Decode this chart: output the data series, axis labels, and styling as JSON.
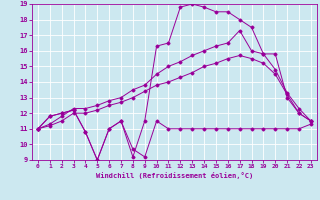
{
  "xlabel": "Windchill (Refroidissement éolien,°C)",
  "background_color": "#cce8f0",
  "line_color": "#990099",
  "grid_color": "#ffffff",
  "xlim": [
    -0.5,
    23.5
  ],
  "ylim": [
    9,
    19
  ],
  "xticks": [
    0,
    1,
    2,
    3,
    4,
    5,
    6,
    7,
    8,
    9,
    10,
    11,
    12,
    13,
    14,
    15,
    16,
    17,
    18,
    19,
    20,
    21,
    22,
    23
  ],
  "yticks": [
    9,
    10,
    11,
    12,
    13,
    14,
    15,
    16,
    17,
    18,
    19
  ],
  "line1_x": [
    0,
    1,
    2,
    3,
    4,
    5,
    6,
    7,
    8,
    9,
    10,
    11,
    12,
    13,
    14,
    15,
    16,
    17,
    18,
    19,
    20,
    21,
    22,
    23
  ],
  "line1_y": [
    11.0,
    11.8,
    12.0,
    12.2,
    10.8,
    9.0,
    11.0,
    11.5,
    9.7,
    9.2,
    11.5,
    11.0,
    11.0,
    11.0,
    11.0,
    11.0,
    11.0,
    11.0,
    11.0,
    11.0,
    11.0,
    11.0,
    11.0,
    11.3
  ],
  "line2_x": [
    0,
    1,
    2,
    3,
    4,
    5,
    6,
    7,
    8,
    9,
    10,
    11,
    12,
    13,
    14,
    15,
    16,
    17,
    18,
    19,
    20,
    21,
    22,
    23
  ],
  "line2_y": [
    11.0,
    11.2,
    11.5,
    12.0,
    12.0,
    12.2,
    12.5,
    12.7,
    13.0,
    13.4,
    13.8,
    14.0,
    14.3,
    14.6,
    15.0,
    15.2,
    15.5,
    15.7,
    15.5,
    15.2,
    14.5,
    13.2,
    12.0,
    11.5
  ],
  "line3_x": [
    0,
    1,
    2,
    3,
    4,
    5,
    6,
    7,
    8,
    9,
    10,
    11,
    12,
    13,
    14,
    15,
    16,
    17,
    18,
    19,
    20,
    21,
    22,
    23
  ],
  "line3_y": [
    11.0,
    11.3,
    11.8,
    12.3,
    12.3,
    12.5,
    12.8,
    13.0,
    13.5,
    13.8,
    14.5,
    15.0,
    15.3,
    15.7,
    16.0,
    16.3,
    16.5,
    17.3,
    16.0,
    15.8,
    14.8,
    13.3,
    12.3,
    11.5
  ],
  "line4_x": [
    0,
    1,
    2,
    3,
    4,
    5,
    6,
    7,
    8,
    9,
    10,
    11,
    12,
    13,
    14,
    15,
    16,
    17,
    18,
    19,
    20,
    21,
    22,
    23
  ],
  "line4_y": [
    11.0,
    11.8,
    12.0,
    12.2,
    10.8,
    9.0,
    11.0,
    11.5,
    9.2,
    11.5,
    16.3,
    16.5,
    18.8,
    19.0,
    18.8,
    18.5,
    18.5,
    18.0,
    17.5,
    15.8,
    15.8,
    13.0,
    12.0,
    11.5
  ]
}
